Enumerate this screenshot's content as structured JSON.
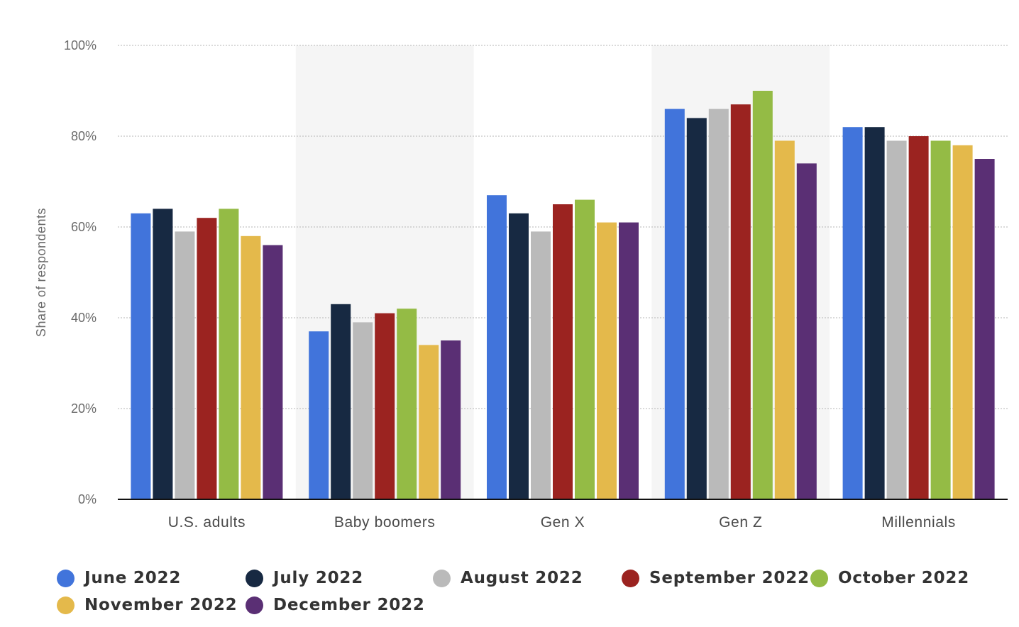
{
  "chart_data": {
    "type": "bar",
    "ylabel": "Share of respondents",
    "xlabel": "",
    "ylim": [
      0,
      100
    ],
    "y_ticks": [
      {
        "value": 0,
        "label": "0%"
      },
      {
        "value": 20,
        "label": "20%"
      },
      {
        "value": 40,
        "label": "40%"
      },
      {
        "value": 60,
        "label": "60%"
      },
      {
        "value": 80,
        "label": "80%"
      },
      {
        "value": 100,
        "label": "100%"
      }
    ],
    "grid": true,
    "legend_position": "bottom",
    "categories": [
      "U.S. adults",
      "Baby boomers",
      "Gen X",
      "Gen Z",
      "Millennials"
    ],
    "series": [
      {
        "name": "June 2022",
        "color": "#4174db",
        "values": [
          63,
          37,
          67,
          86,
          82
        ]
      },
      {
        "name": "July 2022",
        "color": "#172942",
        "values": [
          64,
          43,
          63,
          84,
          82
        ]
      },
      {
        "name": "August 2022",
        "color": "#bababa",
        "values": [
          59,
          39,
          59,
          86,
          79
        ]
      },
      {
        "name": "September 2022",
        "color": "#9b2320",
        "values": [
          62,
          41,
          65,
          87,
          80
        ]
      },
      {
        "name": "October 2022",
        "color": "#94bb45",
        "values": [
          64,
          42,
          66,
          90,
          79
        ]
      },
      {
        "name": "November 2022",
        "color": "#e4b94b",
        "values": [
          58,
          34,
          61,
          79,
          78
        ]
      },
      {
        "name": "December 2022",
        "color": "#5a2f74",
        "values": [
          56,
          35,
          61,
          74,
          75
        ]
      }
    ]
  }
}
